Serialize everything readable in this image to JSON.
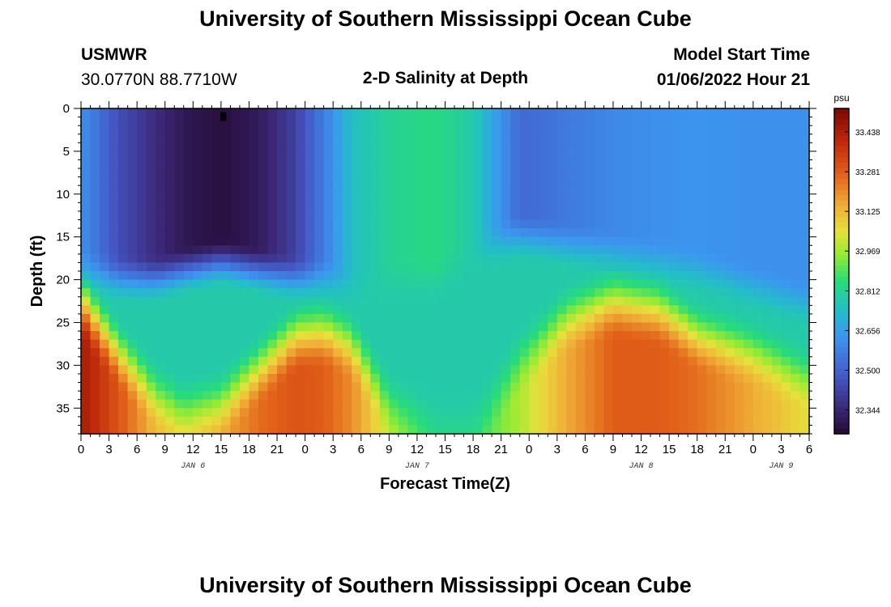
{
  "page": {
    "title": "University of Southern Mississippi Ocean Cube",
    "footer_title": "University of Southern Mississippi Ocean Cube"
  },
  "header": {
    "station": "USMWR",
    "location": "30.0770N  88.7710W",
    "plot_title": "2-D Salinity at Depth",
    "model_start_label": "Model Start Time",
    "model_start_value": "01/06/2022 Hour 21"
  },
  "chart_data": {
    "type": "heatmap",
    "title": "2-D Salinity at Depth",
    "xlabel": "Forecast Time(Z)",
    "ylabel": "Depth (ft)",
    "x_tick_labels": [
      "0",
      "3",
      "6",
      "9",
      "12",
      "15",
      "18",
      "21",
      "0",
      "3",
      "6",
      "9",
      "12",
      "15",
      "18",
      "21",
      "0",
      "3",
      "6",
      "9",
      "12",
      "15",
      "18",
      "21",
      "0",
      "3",
      "6"
    ],
    "day_labels": [
      {
        "label": "JAN 6",
        "at_tick": 4
      },
      {
        "label": "JAN 7",
        "at_tick": 12
      },
      {
        "label": "JAN 8",
        "at_tick": 20
      },
      {
        "label": "JAN 9",
        "at_tick": 25
      }
    ],
    "x_range_hours": [
      0,
      78
    ],
    "y_range_ft": [
      0,
      38
    ],
    "y_ticks": [
      0,
      5,
      10,
      15,
      20,
      25,
      30,
      35
    ],
    "colorbar": {
      "unit": "psu",
      "ticks": [
        "33.438",
        "33.281",
        "33.125",
        "32.969",
        "32.812",
        "32.656",
        "32.500",
        "32.344"
      ],
      "range": [
        32.25,
        33.53
      ]
    },
    "fields": {
      "surface_salinity": {
        "hours": [
          0,
          4,
          8,
          11,
          15,
          19,
          23,
          26,
          29,
          33,
          38,
          42,
          47,
          52,
          57,
          62,
          66,
          72,
          78
        ],
        "values": [
          32.62,
          32.45,
          32.36,
          32.3,
          32.27,
          32.31,
          32.42,
          32.57,
          32.74,
          32.81,
          32.84,
          32.78,
          32.52,
          32.56,
          32.6,
          32.62,
          32.63,
          32.62,
          32.62
        ]
      },
      "layer_bottom_depth_ft": {
        "hours": [
          0,
          4,
          8,
          11,
          15,
          19,
          23,
          26,
          29,
          33,
          38,
          42,
          47,
          52,
          57,
          62,
          66,
          72,
          78
        ],
        "values": [
          19,
          20,
          20,
          19,
          18,
          19,
          20,
          20,
          21,
          20,
          20,
          17,
          15,
          16,
          17,
          18,
          19,
          21,
          23
        ]
      },
      "bottom_salinity": {
        "hours": [
          0,
          4,
          8,
          11,
          15,
          19,
          23,
          26,
          29,
          33,
          38,
          42,
          47,
          52,
          57,
          62,
          66,
          72,
          78
        ],
        "values": [
          33.45,
          33.3,
          33.12,
          33.08,
          33.15,
          33.25,
          33.3,
          33.28,
          33.2,
          33.0,
          32.86,
          32.86,
          32.98,
          33.15,
          33.28,
          33.28,
          33.25,
          33.15,
          33.05
        ]
      },
      "halocline_depth_ft": {
        "hours": [
          0,
          4,
          8,
          11,
          15,
          19,
          23,
          26,
          29,
          33,
          38,
          42,
          47,
          52,
          57,
          62,
          66,
          72,
          78
        ],
        "values": [
          21,
          27,
          32,
          34,
          33,
          29,
          25,
          24.5,
          26,
          33,
          36,
          36,
          28,
          23,
          21,
          22,
          25,
          27,
          30
        ]
      }
    },
    "marker": {
      "hour": 15.2,
      "depth_ft": 0.9
    }
  }
}
